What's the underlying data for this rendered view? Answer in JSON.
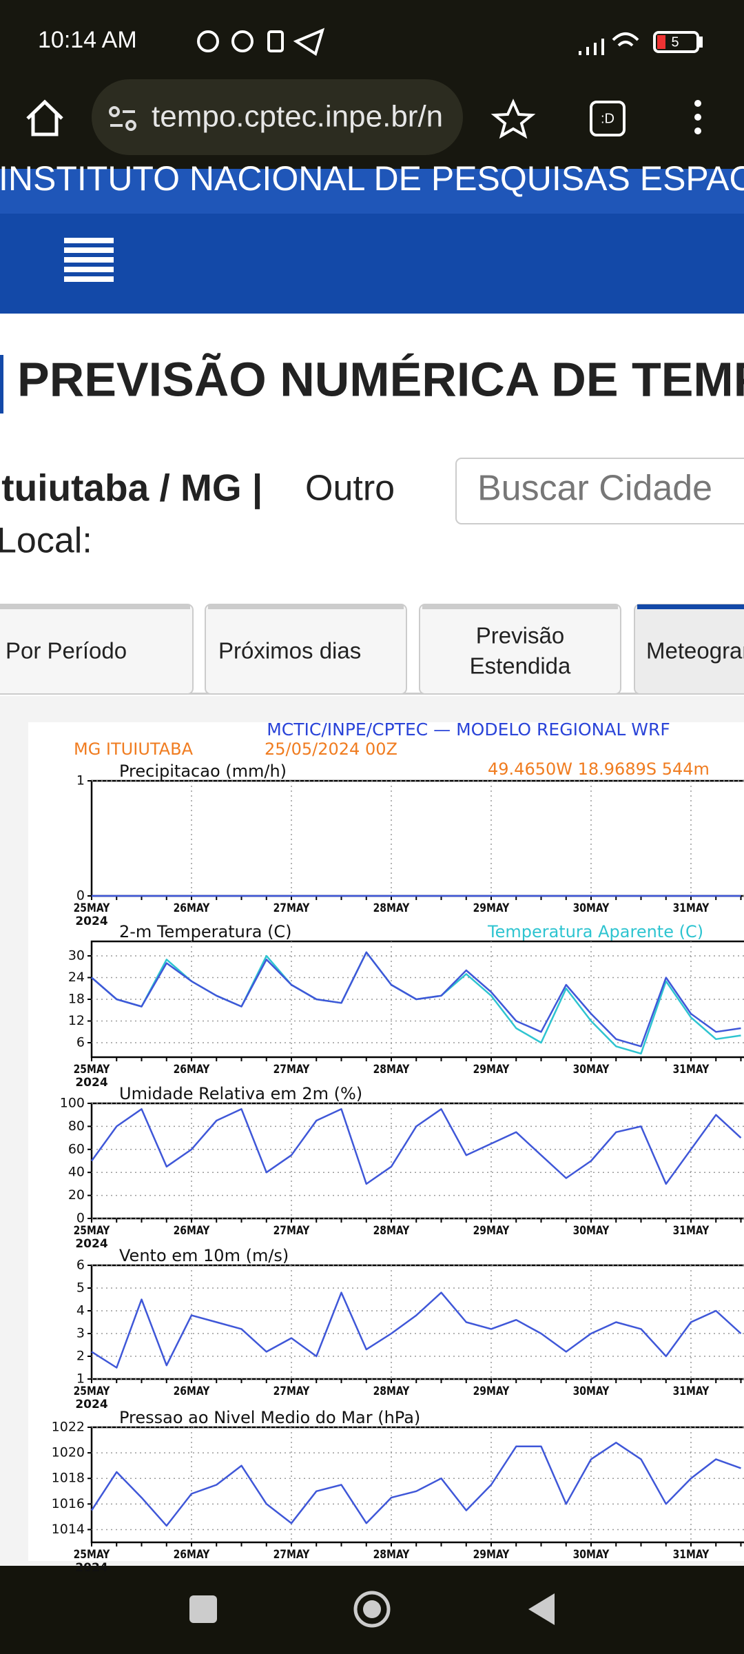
{
  "status": {
    "time": "10:14 AM",
    "battery": "5"
  },
  "browser": {
    "url": "tempo.cptec.inpe.br/n"
  },
  "site": {
    "banner": "INSTITUTO NACIONAL DE PESQUISAS ESPACIAIS",
    "title": "PREVISÃO NUMÉRICA DE TEMPO",
    "city": "Ituiutaba / MG |",
    "other_1": "Outro",
    "other_2": "Local:",
    "search": "Buscar Cidade"
  },
  "tabs": [
    "Por Período",
    "Próximos dias",
    [
      "Previsão",
      "Estendida"
    ],
    "Meteograma"
  ],
  "meteogram": {
    "title": "MCTIC/INPE/CPTEC — MODELO REGIONAL WRF",
    "place": "MG ITUIUTABA",
    "run": "25/05/2024 00Z",
    "coords": "49.4650W 18.9689S 544m"
  },
  "chart_data": [
    {
      "type": "line",
      "title": "Precipitacao (mm/h)",
      "x_year": "2024",
      "grid": true,
      "categories": [
        "25MAY",
        null,
        null,
        null,
        "26MAY",
        null,
        null,
        null,
        "27MAY",
        null,
        null,
        null,
        "28MAY",
        null,
        null,
        null,
        "29MAY",
        null,
        null,
        null,
        "30MAY",
        null,
        null,
        null,
        "31MAY",
        null,
        null
      ],
      "ylim": [
        0,
        1
      ],
      "yticks": [
        0,
        1
      ],
      "series": [
        {
          "name": "Precipitacao",
          "color": "#3f57d8",
          "values": [
            0,
            0,
            0,
            0,
            0,
            0,
            0,
            0,
            0,
            0,
            0,
            0,
            0,
            0,
            0,
            0,
            0,
            0,
            0,
            0,
            0,
            0,
            0,
            0,
            0,
            0,
            0
          ]
        }
      ]
    },
    {
      "type": "line",
      "title": "2-m Temperatura (C)",
      "x_year": "2024",
      "grid": true,
      "categories": [
        "25MAY",
        null,
        null,
        null,
        "26MAY",
        null,
        null,
        null,
        "27MAY",
        null,
        null,
        null,
        "28MAY",
        null,
        null,
        null,
        "29MAY",
        null,
        null,
        null,
        "30MAY",
        null,
        null,
        null,
        "31MAY",
        null,
        null
      ],
      "ylim": [
        2,
        34
      ],
      "yticks": [
        6,
        12,
        18,
        24,
        30
      ],
      "series": [
        {
          "name": "Temperatura Aparente (C)",
          "color": "#2ec4d0",
          "values": [
            24,
            18,
            16,
            29,
            23,
            19,
            16,
            30,
            22,
            18,
            17,
            31,
            22,
            18,
            19,
            25,
            19,
            10,
            6,
            21,
            12,
            5,
            3,
            23,
            13,
            7,
            8
          ]
        },
        {
          "name": "2-m Temperatura",
          "color": "#3f57d8",
          "values": [
            24,
            18,
            16,
            28,
            23,
            19,
            16,
            29,
            22,
            18,
            17,
            31,
            22,
            18,
            19,
            26,
            20,
            12,
            9,
            22,
            14,
            7,
            5,
            24,
            14,
            9,
            10
          ]
        }
      ]
    },
    {
      "type": "line",
      "title": "Umidade Relativa em 2m (%)",
      "x_year": "2024",
      "grid": true,
      "categories": [
        "25MAY",
        null,
        null,
        null,
        "26MAY",
        null,
        null,
        null,
        "27MAY",
        null,
        null,
        null,
        "28MAY",
        null,
        null,
        null,
        "29MAY",
        null,
        null,
        null,
        "30MAY",
        null,
        null,
        null,
        "31MAY",
        null,
        null
      ],
      "ylim": [
        0,
        100
      ],
      "yticks": [
        0,
        20,
        40,
        60,
        80,
        100
      ],
      "series": [
        {
          "name": "Umidade",
          "color": "#3f57d8",
          "values": [
            50,
            80,
            95,
            45,
            60,
            85,
            95,
            40,
            55,
            85,
            95,
            30,
            45,
            80,
            95,
            55,
            65,
            75,
            55,
            35,
            50,
            75,
            80,
            30,
            60,
            90,
            70
          ]
        }
      ]
    },
    {
      "type": "line",
      "title": "Vento em 10m (m/s)",
      "x_year": "2024",
      "grid": true,
      "categories": [
        "25MAY",
        null,
        null,
        null,
        "26MAY",
        null,
        null,
        null,
        "27MAY",
        null,
        null,
        null,
        "28MAY",
        null,
        null,
        null,
        "29MAY",
        null,
        null,
        null,
        "30MAY",
        null,
        null,
        null,
        "31MAY",
        null,
        null
      ],
      "ylim": [
        1,
        6
      ],
      "yticks": [
        1,
        2,
        3,
        4,
        5,
        6
      ],
      "series": [
        {
          "name": "Vento",
          "color": "#3f57d8",
          "values": [
            2.2,
            1.5,
            4.5,
            1.6,
            3.8,
            3.5,
            3.2,
            2.2,
            2.8,
            2.0,
            4.8,
            2.3,
            3.0,
            3.8,
            4.8,
            3.5,
            3.2,
            3.6,
            3.0,
            2.2,
            3.0,
            3.5,
            3.2,
            2.0,
            3.5,
            4.0,
            3.0
          ]
        }
      ]
    },
    {
      "type": "line",
      "title": "Pressao ao Nivel Medio do Mar (hPa)",
      "x_year": "2024",
      "grid": true,
      "categories": [
        "25MAY",
        null,
        null,
        null,
        "26MAY",
        null,
        null,
        null,
        "27MAY",
        null,
        null,
        null,
        "28MAY",
        null,
        null,
        null,
        "29MAY",
        null,
        null,
        null,
        "30MAY",
        null,
        null,
        null,
        "31MAY",
        null,
        null
      ],
      "ylim": [
        1013,
        1022
      ],
      "yticks": [
        1014,
        1016,
        1018,
        1020,
        1022
      ],
      "series": [
        {
          "name": "Pressao",
          "color": "#3f57d8",
          "values": [
            1015.5,
            1018.5,
            1016.5,
            1014.3,
            1016.8,
            1017.5,
            1019,
            1016,
            1014.5,
            1017,
            1017.5,
            1014.5,
            1016.5,
            1017,
            1018,
            1015.5,
            1017.5,
            1020.5,
            1020.5,
            1016,
            1019.5,
            1020.8,
            1019.5,
            1016,
            1018,
            1019.5,
            1018.8
          ]
        }
      ]
    }
  ]
}
